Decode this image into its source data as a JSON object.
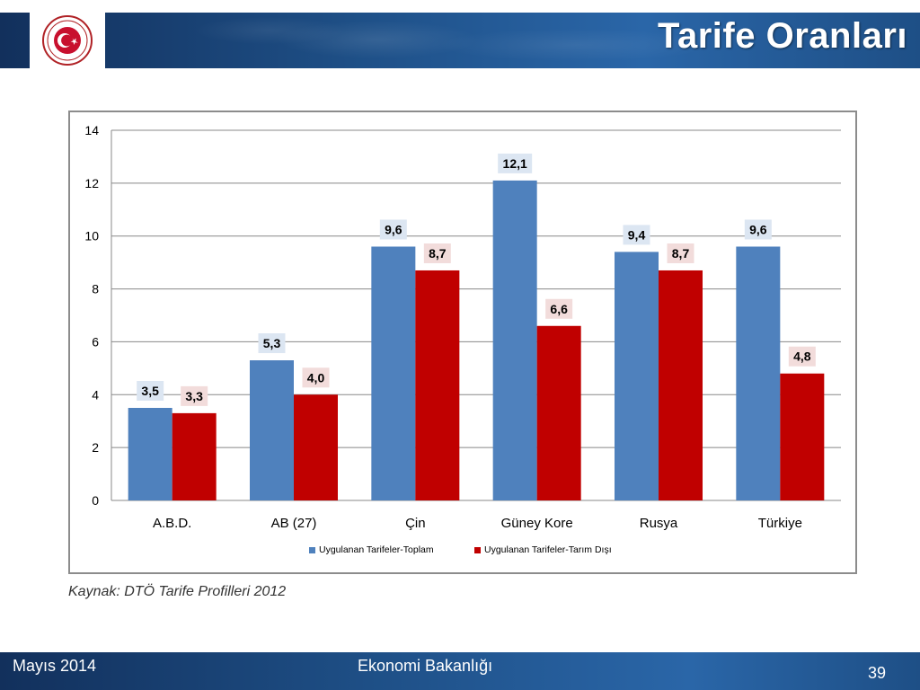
{
  "header": {
    "title": "Tarife Oranları",
    "logo_text": "TÜRKİYE CUMHURİYETİ EKONOMİ BAKANLIĞI"
  },
  "colors": {
    "series_total": "#4f81bd",
    "series_non_agri": "#c00000",
    "label_bg_total": "#dce6f2",
    "label_bg_non_agri": "#f2dcdb",
    "header_bg": "#1e4f86"
  },
  "chart_data": {
    "type": "bar",
    "categories": [
      "A.B.D.",
      "AB (27)",
      "Çin",
      "Güney Kore",
      "Rusya",
      "Türkiye"
    ],
    "series": [
      {
        "name": "Uygulanan Tarifeler-Toplam",
        "values": [
          3.5,
          5.3,
          9.6,
          12.1,
          9.4,
          9.6
        ]
      },
      {
        "name": "Uygulanan Tarifeler-Tarım Dışı",
        "values": [
          3.3,
          4.0,
          8.7,
          6.6,
          8.7,
          4.8
        ]
      }
    ],
    "value_labels": [
      [
        "3,5",
        "5,3",
        "9,6",
        "12,1",
        "9,4",
        "9,6"
      ],
      [
        "3,3",
        "4,0",
        "8,7",
        "6,6",
        "8,7",
        "4,8"
      ]
    ],
    "y_ticks": [
      "0",
      "2",
      "4",
      "6",
      "8",
      "10",
      "12",
      "14"
    ],
    "ylim": [
      0,
      14
    ],
    "grid": true,
    "legend": "bottom"
  },
  "source_note": "Kaynak: DTÖ Tarife Profilleri 2012",
  "footer": {
    "date": "Mayıs 2014",
    "org": "Ekonomi Bakanlığı",
    "page_number": "39"
  }
}
